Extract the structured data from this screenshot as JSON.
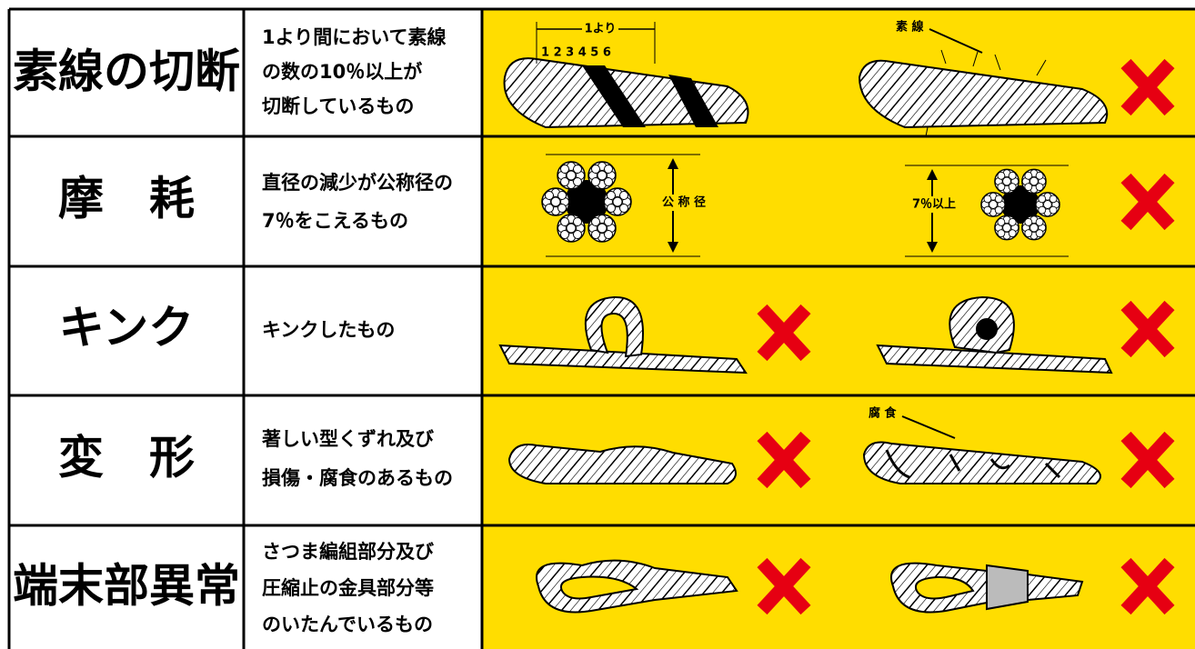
{
  "rows": [
    {
      "title": "素線の切断",
      "description": [
        "1より間において素線",
        "の数の10％以上が",
        "切断しているもの"
      ],
      "labels": [
        "1より",
        "1 2 3 4 5 6",
        "素 線"
      ]
    },
    {
      "title": "摩　耗",
      "description": [
        "直径の減少が公称径の",
        "7％をこえるもの"
      ],
      "labels": [
        "公 称 径",
        "7％以上"
      ]
    },
    {
      "title": "キンク",
      "description": [
        "キンクしたもの"
      ]
    },
    {
      "title": "変　形",
      "description": [
        "著しい型くずれ及び",
        "損傷・腐食のあるもの"
      ],
      "labels": [
        "腐 食"
      ]
    },
    {
      "title": "端末部異常",
      "description": [
        "さつま編組部分及び",
        "圧縮止の金具部分等",
        "のいたんでいるもの"
      ]
    }
  ]
}
